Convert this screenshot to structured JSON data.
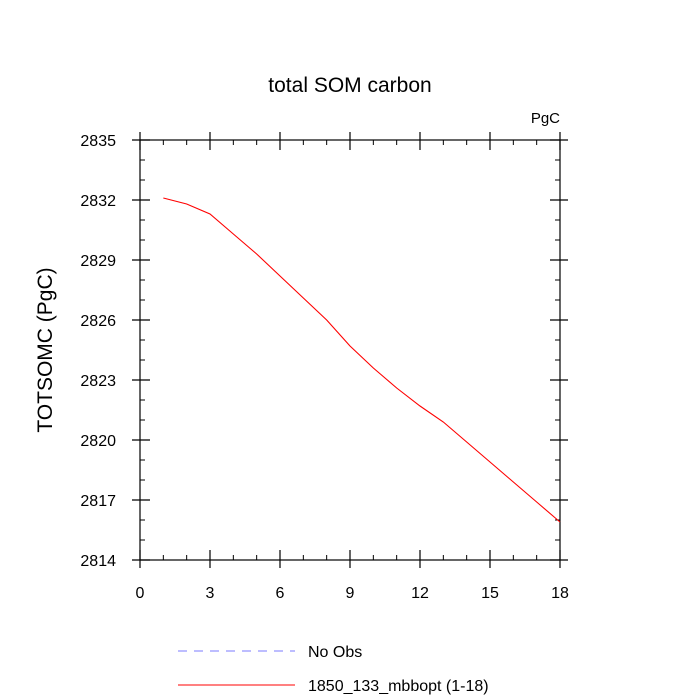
{
  "chart_data": {
    "type": "line",
    "title": "total SOM carbon",
    "units_label": "PgC",
    "ylabel": "TOTSOMC  (PgC)",
    "xlabel": "",
    "xlim": [
      0,
      18
    ],
    "ylim": [
      2814,
      2835
    ],
    "x_ticks": [
      0,
      3,
      6,
      9,
      12,
      15,
      18
    ],
    "y_ticks": [
      2814,
      2817,
      2820,
      2823,
      2826,
      2829,
      2832,
      2835
    ],
    "x_tick_labels": [
      "0",
      "3",
      "6",
      "9",
      "12",
      "15",
      "18"
    ],
    "y_tick_labels": [
      "2814",
      "2817",
      "2820",
      "2823",
      "2826",
      "2829",
      "2832",
      "2835"
    ],
    "grid": false,
    "legend_placement": "bottom",
    "series": [
      {
        "name": "1850_133_mbbopt (1-18)",
        "color": "#ff0000",
        "style": "solid",
        "x": [
          1,
          2,
          3,
          4,
          5,
          6,
          7,
          8,
          9,
          10,
          11,
          12,
          13,
          14,
          15,
          16,
          17,
          18
        ],
        "y": [
          2832.1,
          2831.8,
          2831.3,
          2830.3,
          2829.3,
          2828.2,
          2827.1,
          2826.0,
          2824.7,
          2823.6,
          2822.6,
          2821.7,
          2820.9,
          2819.9,
          2818.9,
          2817.9,
          2816.9,
          2815.9
        ]
      }
    ],
    "legend": [
      {
        "label": "No Obs",
        "color": "#7b7bff",
        "style": "dashed"
      },
      {
        "label": "1850_133_mbbopt (1-18)",
        "color": "#ff0000",
        "style": "solid"
      }
    ]
  }
}
